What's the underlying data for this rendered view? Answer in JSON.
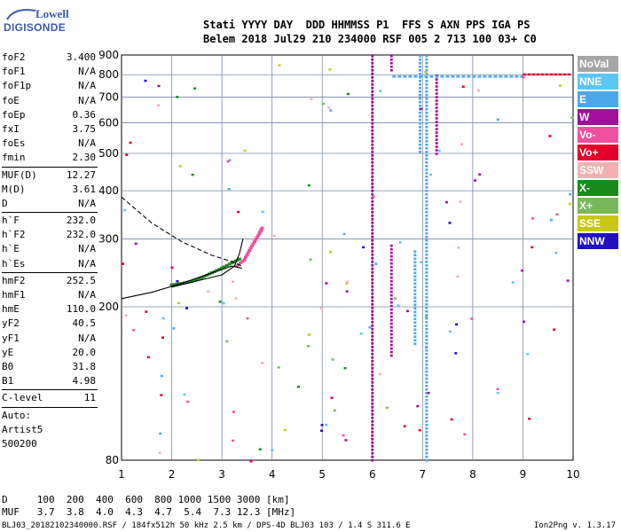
{
  "logo": {
    "line1": "Lowell",
    "line2": "DIGISONDE"
  },
  "header": {
    "line1": "Stati YYYY DAY  DDD HHMMSS P1  FFS S AXN PPS IGA PS",
    "line2": "Belem 2018 Jul29 210 234000 RSF 005 2 713 100 03+ C0"
  },
  "params": [
    {
      "k": "foF2",
      "v": "3.400"
    },
    {
      "k": "foF1",
      "v": "N/A"
    },
    {
      "k": "foF1p",
      "v": "N/A"
    },
    {
      "k": "foE",
      "v": "N/A"
    },
    {
      "k": "foEp",
      "v": "0.36"
    },
    {
      "k": "fxI",
      "v": "3.75"
    },
    {
      "k": "foEs",
      "v": "N/A"
    },
    {
      "k": "fmin",
      "v": "2.30"
    },
    {
      "sep": true
    },
    {
      "k": "MUF(D)",
      "v": "12.27"
    },
    {
      "k": "M(D)",
      "v": "3.61"
    },
    {
      "k": "D",
      "v": "N/A"
    },
    {
      "sep": true
    },
    {
      "k": "h`F",
      "v": "232.0"
    },
    {
      "k": "h`F2",
      "v": "232.0"
    },
    {
      "k": "h`E",
      "v": "N/A"
    },
    {
      "k": "h`Es",
      "v": "N/A"
    },
    {
      "sep": true
    },
    {
      "k": "hmF2",
      "v": "252.5"
    },
    {
      "k": "hmF1",
      "v": "N/A"
    },
    {
      "k": "hmE",
      "v": "110.0"
    },
    {
      "k": "yF2",
      "v": "40.5"
    },
    {
      "k": "yF1",
      "v": "N/A"
    },
    {
      "k": "yE",
      "v": "20.0"
    },
    {
      "k": "B0",
      "v": "31.8"
    },
    {
      "k": "B1",
      "v": "4.98"
    },
    {
      "sep": true
    },
    {
      "k": "C-level",
      "v": "11"
    },
    {
      "sep": true
    },
    {
      "t": "Auto:"
    },
    {
      "t": "Artist5"
    },
    {
      "t": "500200"
    }
  ],
  "legend": [
    {
      "label": "NoVal",
      "color": "#a6a6a6"
    },
    {
      "label": "NNE",
      "color": "#5cc6f2"
    },
    {
      "label": "E",
      "color": "#4aa8e8"
    },
    {
      "label": "W",
      "color": "#a0109a"
    },
    {
      "label": "Vo-",
      "color": "#f050a0"
    },
    {
      "label": "Vo+",
      "color": "#e0002a"
    },
    {
      "label": "SSW",
      "color": "#f4b0b0"
    },
    {
      "label": "X-",
      "color": "#1a8a1a"
    },
    {
      "label": "X+",
      "color": "#7ab85c"
    },
    {
      "label": "SSE",
      "color": "#c8c814"
    },
    {
      "label": "NNW",
      "color": "#2010c0"
    }
  ],
  "chart_data": {
    "type": "scatter",
    "xlim": [
      1,
      10
    ],
    "ylim": [
      80,
      900
    ],
    "y_scale": "log",
    "x_ticks": [
      1,
      2,
      3,
      4,
      5,
      6,
      7,
      8,
      9,
      10
    ],
    "y_ticks": [
      80,
      200,
      300,
      400,
      500,
      600,
      700,
      800,
      900
    ],
    "grid": true,
    "traces": {
      "x_trace": {
        "color": "#1a8a1a",
        "points": [
          [
            2.0,
            228
          ],
          [
            2.2,
            230
          ],
          [
            2.4,
            233
          ],
          [
            2.6,
            238
          ],
          [
            2.8,
            245
          ],
          [
            3.0,
            252
          ],
          [
            3.2,
            260
          ],
          [
            3.35,
            266
          ]
        ]
      },
      "o_trace": {
        "color": "#f050a0",
        "points": [
          [
            3.3,
            255
          ],
          [
            3.45,
            265
          ],
          [
            3.55,
            280
          ],
          [
            3.65,
            295
          ],
          [
            3.75,
            310
          ],
          [
            3.8,
            320
          ]
        ]
      },
      "profile_upper": {
        "style": "dashed",
        "points": [
          [
            1.0,
            385
          ],
          [
            1.6,
            330
          ],
          [
            2.2,
            295
          ],
          [
            2.8,
            272
          ],
          [
            3.2,
            262
          ],
          [
            3.4,
            255
          ]
        ]
      },
      "profile_lower": {
        "style": "solid",
        "points": [
          [
            1.0,
            210
          ],
          [
            1.6,
            218
          ],
          [
            2.2,
            230
          ],
          [
            2.8,
            245
          ],
          [
            3.2,
            255
          ],
          [
            3.4,
            252
          ]
        ]
      },
      "profile_curve": {
        "style": "solid",
        "points": [
          [
            2.0,
            225
          ],
          [
            2.6,
            235
          ],
          [
            3.0,
            242
          ],
          [
            3.25,
            255
          ],
          [
            3.35,
            275
          ],
          [
            3.42,
            300
          ]
        ]
      }
    },
    "columns": [
      {
        "x": 6.0,
        "color": "#a0109a",
        "y": [
          80,
          900
        ]
      },
      {
        "x": 6.38,
        "color": "#a0109a",
        "y": [
          150,
          290
        ]
      },
      {
        "x": 6.38,
        "color": "#a0109a",
        "y": [
          820,
          900
        ]
      },
      {
        "x": 6.85,
        "color": "#4aa8e8",
        "y": [
          160,
          280
        ]
      },
      {
        "x": 6.95,
        "color": "#4aa8e8",
        "y": [
          500,
          900
        ]
      },
      {
        "x": 7.08,
        "color": "#4aa8e8",
        "y": [
          80,
          900
        ]
      },
      {
        "x": 7.28,
        "color": "#a0109a",
        "y": [
          500,
          800
        ]
      }
    ],
    "bands": [
      {
        "x": [
          6.4,
          9.0
        ],
        "y": 790,
        "color": "#4aa8e8"
      },
      {
        "x": 9.0,
        "y": 800,
        "color": "#e0002a"
      }
    ]
  },
  "footer": {
    "line1": "D     100  200  400  600  800 1000 1500 3000 [km]",
    "line2": "MUF   3.7  3.8  4.0  4.3  4.7  5.4  7.3 12.3 [MHz]"
  },
  "fileinfo": "BLJ03_20182102340000.RSF / 184fx512h 50 kHz 2.5 km / DPS-4D BLJ03 103 / 1.4 S 311.6 E",
  "version": "Ion2Png v. 1.3.17"
}
